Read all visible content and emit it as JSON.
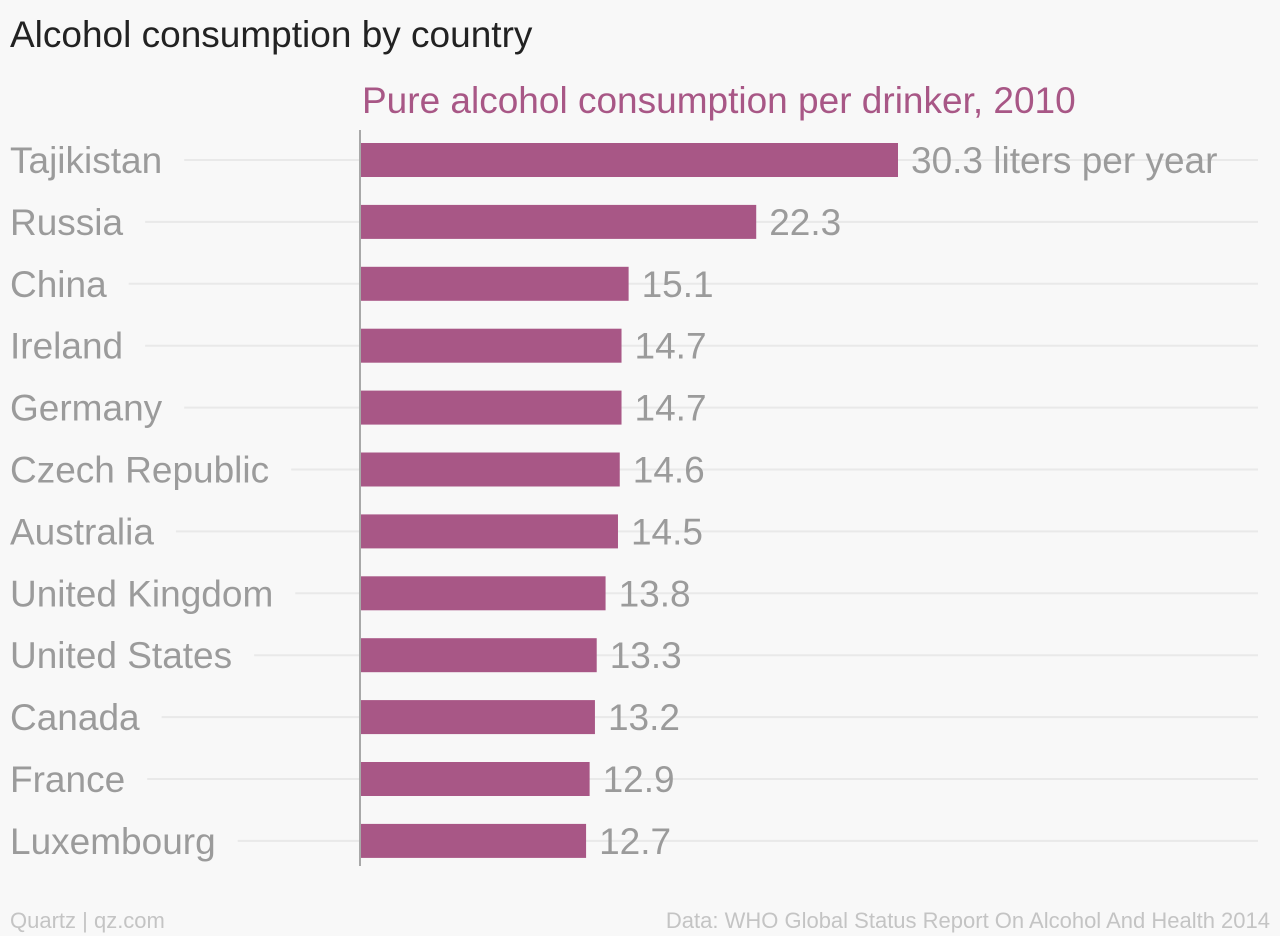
{
  "title": "Alcohol consumption by country",
  "footer": {
    "credit": "Quartz | qz.com",
    "source": "Data: WHO Global Status Report On Alcohol And Health 2014"
  },
  "colors": {
    "bar": "#a85786",
    "series_title": "#a85786",
    "category_label": "#9b9b9b",
    "value_label": "#9b9b9b",
    "gridline": "#e9e9e9",
    "axis": "#a8a8a8"
  },
  "chart_data": {
    "type": "bar",
    "orientation": "horizontal",
    "title": "Alcohol consumption by country",
    "categories": [
      "Tajikistan",
      "Russia",
      "China",
      "Ireland",
      "Germany",
      "Czech Republic",
      "Australia",
      "United Kingdom",
      "United States",
      "Canada",
      "France",
      "Luxembourg"
    ],
    "series": [
      {
        "name": "Pure alcohol consumption per drinker, 2010",
        "values": [
          30.3,
          22.3,
          15.1,
          14.7,
          14.7,
          14.6,
          14.5,
          13.8,
          13.3,
          13.2,
          12.9,
          12.7
        ]
      }
    ],
    "value_labels": [
      "30.3 liters per year",
      "22.3",
      "15.1",
      "14.7",
      "14.7",
      "14.6",
      "14.5",
      "13.8",
      "13.3",
      "13.2",
      "12.9",
      "12.7"
    ],
    "xlim": [
      0,
      30.3
    ],
    "grid": true,
    "legend": "none"
  }
}
